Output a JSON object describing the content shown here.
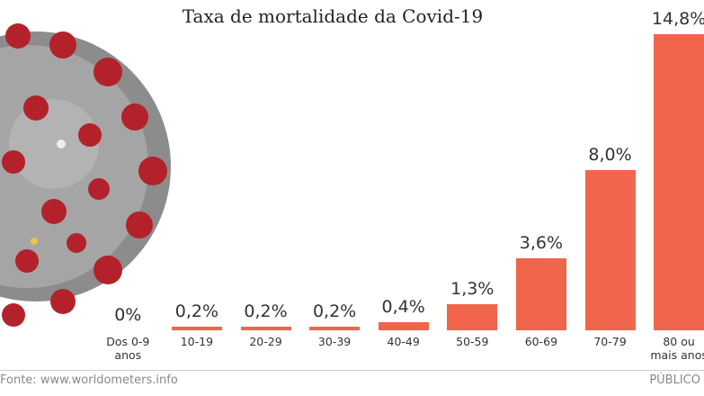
{
  "chart_data": {
    "type": "bar",
    "title": "Taxa de mortalidade da Covid-19",
    "categories": [
      "Dos 0-9\nanos",
      "10-19",
      "20-29",
      "30-39",
      "40-49",
      "50-59",
      "60-69",
      "70-79",
      "80 ou\nmais anos"
    ],
    "values": [
      0,
      0.2,
      0.2,
      0.2,
      0.4,
      1.3,
      3.6,
      8.0,
      14.8
    ],
    "value_labels": [
      "0%",
      "0,2%",
      "0,2%",
      "0,2%",
      "0,4%",
      "1,3%",
      "3,6%",
      "8,0%",
      "14,8%"
    ],
    "color": "#f0654b",
    "source": "Fonte: www.worldometers.info",
    "publisher": "PÚBLICO"
  }
}
